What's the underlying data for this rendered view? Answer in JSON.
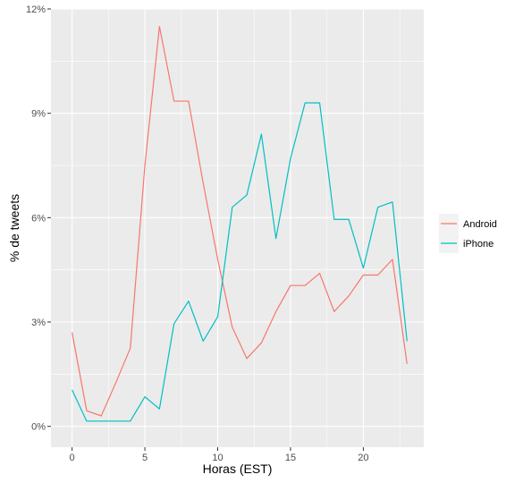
{
  "chart_data": {
    "type": "line",
    "xlabel": "Horas (EST)",
    "ylabel": "% de tweets",
    "xlim": [
      -1.45,
      24.15
    ],
    "ylim": [
      -0.6,
      12.0
    ],
    "x_ticks": [
      0,
      5,
      10,
      15,
      20
    ],
    "y_ticks": [
      0,
      3,
      6,
      9,
      12
    ],
    "y_tick_labels": [
      "0%",
      "3%",
      "6%",
      "9%",
      "12%"
    ],
    "grid": true,
    "background_color": "#ebebeb",
    "legend_position": "right",
    "x": [
      0,
      1,
      2,
      3,
      4,
      5,
      6,
      7,
      8,
      9,
      10,
      11,
      12,
      13,
      14,
      15,
      16,
      17,
      18,
      19,
      20,
      21,
      22,
      23
    ],
    "series": [
      {
        "name": "Android",
        "color": "#f8766d",
        "values": [
          2.7,
          0.45,
          0.3,
          1.25,
          2.25,
          7.5,
          11.5,
          9.35,
          9.35,
          7.0,
          4.8,
          2.85,
          1.95,
          2.4,
          3.3,
          4.05,
          4.05,
          4.4,
          3.3,
          3.75,
          4.35,
          4.35,
          4.8,
          1.8
        ]
      },
      {
        "name": "iPhone",
        "color": "#00bfc4",
        "values": [
          1.05,
          0.15,
          0.15,
          0.15,
          0.15,
          0.85,
          0.5,
          2.95,
          3.6,
          2.45,
          3.15,
          6.3,
          6.65,
          8.4,
          5.4,
          7.7,
          9.3,
          9.3,
          5.95,
          5.95,
          4.55,
          6.3,
          6.45,
          2.45
        ]
      }
    ]
  }
}
